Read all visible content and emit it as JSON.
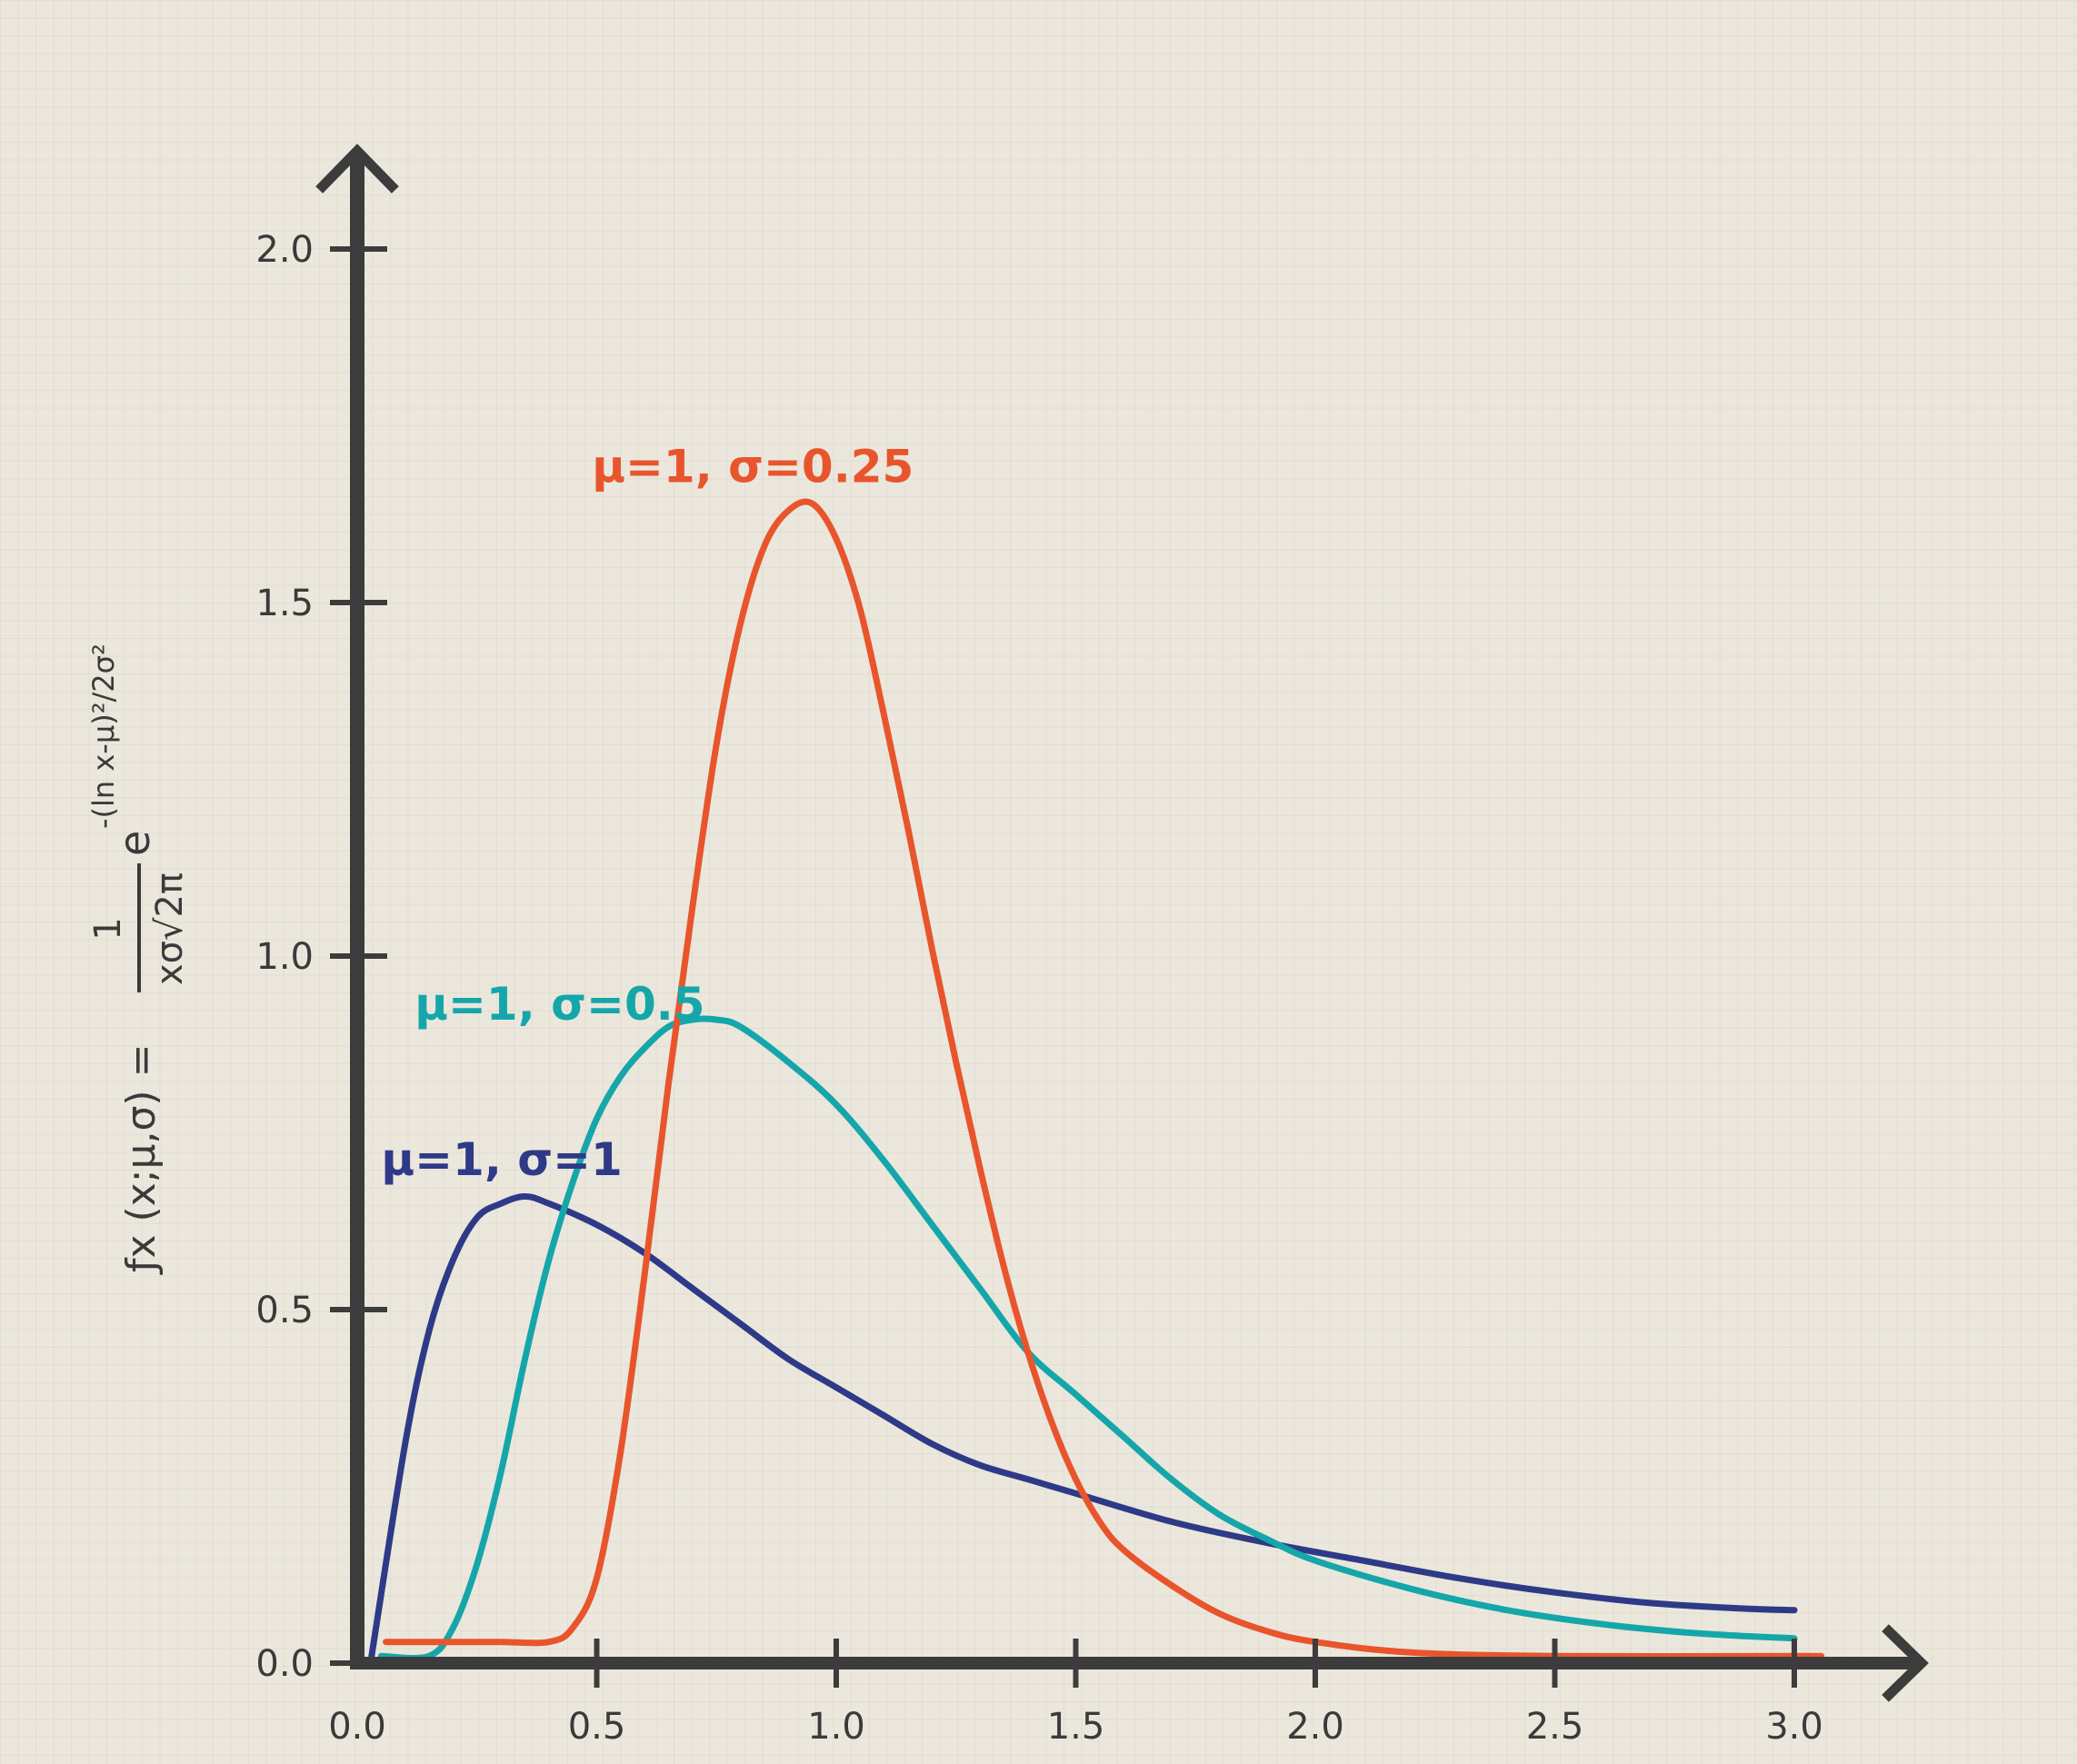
{
  "chart_data": {
    "type": "line",
    "title": "",
    "xlabel": "",
    "ylabel": {
      "prefix": "ƒx (x;μ,σ) = ",
      "numerator": "1",
      "denominator": "xσ√2π",
      "base": "e",
      "exponent": "-(ln x-μ)²/2σ²"
    },
    "xlim": [
      0,
      3.2
    ],
    "ylim": [
      0,
      2.1
    ],
    "x_ticks": [
      0.0,
      0.5,
      1.0,
      1.5,
      2.0,
      2.5,
      3.0
    ],
    "x_tick_labels": [
      "0.0",
      "0.5",
      "1.0",
      "1.5",
      "2.0",
      "2.5",
      "3.0"
    ],
    "y_ticks": [
      0.0,
      0.5,
      1.0,
      1.5,
      2.0
    ],
    "y_tick_labels": [
      "0.0",
      "0.5",
      "1.0",
      "1.5",
      "2.0"
    ],
    "grid": true,
    "series": [
      {
        "name": "μ=1, σ=1",
        "color": "#2e3a87",
        "points": [
          [
            0.03,
            0.01
          ],
          [
            0.1,
            0.31
          ],
          [
            0.15,
            0.47
          ],
          [
            0.2,
            0.57
          ],
          [
            0.25,
            0.63
          ],
          [
            0.3,
            0.65
          ],
          [
            0.35,
            0.66
          ],
          [
            0.4,
            0.65
          ],
          [
            0.5,
            0.62
          ],
          [
            0.6,
            0.58
          ],
          [
            0.7,
            0.53
          ],
          [
            0.8,
            0.48
          ],
          [
            0.9,
            0.43
          ],
          [
            1.0,
            0.39
          ],
          [
            1.1,
            0.35
          ],
          [
            1.2,
            0.31
          ],
          [
            1.3,
            0.28
          ],
          [
            1.4,
            0.26
          ],
          [
            1.5,
            0.24
          ],
          [
            1.7,
            0.2
          ],
          [
            1.9,
            0.17
          ],
          [
            2.1,
            0.145
          ],
          [
            2.3,
            0.12
          ],
          [
            2.5,
            0.1
          ],
          [
            2.7,
            0.085
          ],
          [
            2.9,
            0.077
          ],
          [
            3.0,
            0.075
          ]
        ]
      },
      {
        "name": "μ=1, σ=0.5",
        "color": "#15a6aa",
        "points": [
          [
            0.05,
            0.01
          ],
          [
            0.15,
            0.01
          ],
          [
            0.2,
            0.05
          ],
          [
            0.25,
            0.14
          ],
          [
            0.3,
            0.27
          ],
          [
            0.35,
            0.43
          ],
          [
            0.4,
            0.57
          ],
          [
            0.45,
            0.68
          ],
          [
            0.5,
            0.77
          ],
          [
            0.55,
            0.83
          ],
          [
            0.6,
            0.87
          ],
          [
            0.65,
            0.9
          ],
          [
            0.7,
            0.91
          ],
          [
            0.75,
            0.91
          ],
          [
            0.8,
            0.9
          ],
          [
            0.9,
            0.85
          ],
          [
            1.0,
            0.79
          ],
          [
            1.1,
            0.71
          ],
          [
            1.2,
            0.62
          ],
          [
            1.3,
            0.53
          ],
          [
            1.4,
            0.44
          ],
          [
            1.5,
            0.38
          ],
          [
            1.6,
            0.32
          ],
          [
            1.7,
            0.26
          ],
          [
            1.8,
            0.21
          ],
          [
            1.9,
            0.175
          ],
          [
            2.0,
            0.145
          ],
          [
            2.2,
            0.105
          ],
          [
            2.4,
            0.075
          ],
          [
            2.6,
            0.055
          ],
          [
            2.8,
            0.042
          ],
          [
            3.0,
            0.035
          ]
        ]
      },
      {
        "name": "μ=1, σ=0.25",
        "color": "#e8552d",
        "points": [
          [
            0.06,
            0.03
          ],
          [
            0.2,
            0.03
          ],
          [
            0.3,
            0.03
          ],
          [
            0.4,
            0.03
          ],
          [
            0.45,
            0.05
          ],
          [
            0.5,
            0.12
          ],
          [
            0.55,
            0.3
          ],
          [
            0.6,
            0.55
          ],
          [
            0.65,
            0.82
          ],
          [
            0.7,
            1.07
          ],
          [
            0.75,
            1.3
          ],
          [
            0.8,
            1.47
          ],
          [
            0.85,
            1.58
          ],
          [
            0.9,
            1.63
          ],
          [
            0.95,
            1.64
          ],
          [
            1.0,
            1.59
          ],
          [
            1.05,
            1.49
          ],
          [
            1.1,
            1.34
          ],
          [
            1.15,
            1.18
          ],
          [
            1.2,
            1.01
          ],
          [
            1.25,
            0.85
          ],
          [
            1.3,
            0.7
          ],
          [
            1.35,
            0.56
          ],
          [
            1.4,
            0.44
          ],
          [
            1.45,
            0.34
          ],
          [
            1.5,
            0.26
          ],
          [
            1.55,
            0.2
          ],
          [
            1.6,
            0.16
          ],
          [
            1.7,
            0.11
          ],
          [
            1.8,
            0.07
          ],
          [
            1.9,
            0.045
          ],
          [
            2.0,
            0.03
          ],
          [
            2.2,
            0.015
          ],
          [
            2.5,
            0.01
          ],
          [
            3.0,
            0.01
          ],
          [
            3.05,
            0.01
          ]
        ]
      }
    ],
    "annotations": [
      {
        "text": "μ=1, σ=0.25",
        "series": 2,
        "x": 0.49,
        "y": 1.67
      },
      {
        "text": "μ=1, σ=0.5",
        "series": 1,
        "x": 0.12,
        "y": 0.91
      },
      {
        "text": "μ=1, σ=1",
        "series": 0,
        "x": 0.05,
        "y": 0.69
      }
    ]
  }
}
